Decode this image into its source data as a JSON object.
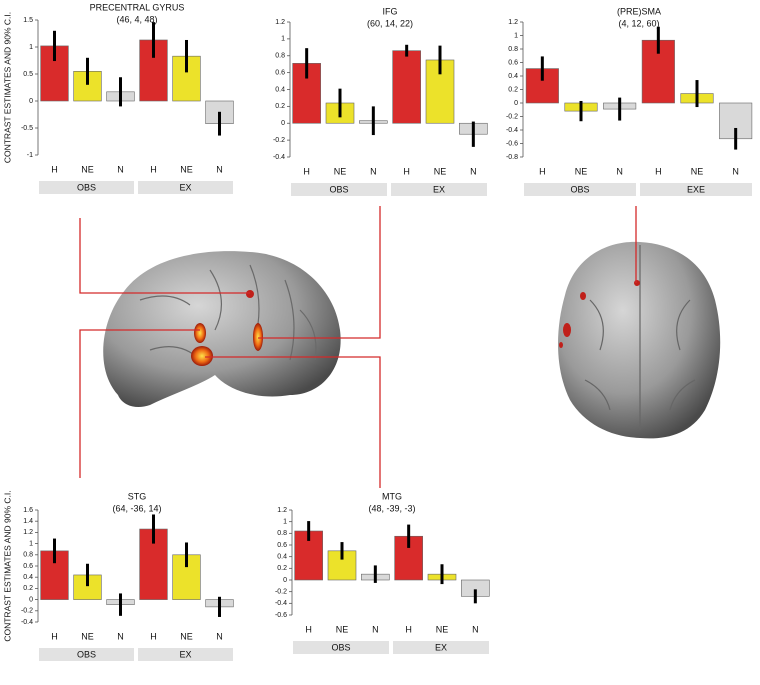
{
  "chart_data": [
    {
      "type": "bar",
      "title": "PRECENTRAL GYRUS",
      "subtitle": "(46, 4, 48)",
      "ylabel": "CONTRAST ESTIMATES AND 90% C.I.",
      "categories": [
        "H",
        "NE",
        "N",
        "H",
        "NE",
        "N"
      ],
      "groups": [
        "OBS",
        "EX"
      ],
      "values": [
        1.02,
        0.55,
        0.17,
        1.13,
        0.83,
        -0.42
      ],
      "errors": [
        0.28,
        0.25,
        0.27,
        0.33,
        0.3,
        0.22
      ],
      "colors": [
        "#d92b2b",
        "#ece22a",
        "#d9d9d9",
        "#d92b2b",
        "#ece22a",
        "#d9d9d9"
      ],
      "ylim": [
        -1,
        1.5
      ],
      "yticks": [
        -1,
        -0.5,
        0,
        0.5,
        1,
        1.5
      ]
    },
    {
      "type": "bar",
      "title": "IFG",
      "subtitle": "(60, 14, 22)",
      "categories": [
        "H",
        "NE",
        "N",
        "H",
        "NE",
        "N"
      ],
      "groups": [
        "OBS",
        "EX"
      ],
      "values": [
        0.71,
        0.24,
        0.03,
        0.86,
        0.75,
        -0.13
      ],
      "errors": [
        0.18,
        0.17,
        0.17,
        0.07,
        0.17,
        0.15
      ],
      "colors": [
        "#d92b2b",
        "#ece22a",
        "#d9d9d9",
        "#d92b2b",
        "#ece22a",
        "#d9d9d9"
      ],
      "ylim": [
        -0.4,
        1.2
      ],
      "yticks": [
        -0.4,
        -0.2,
        0,
        0.2,
        0.4,
        0.6,
        0.8,
        1,
        1.2
      ]
    },
    {
      "type": "bar",
      "title": "(PRE)SMA",
      "subtitle": "(4, 12, 60)",
      "categories": [
        "H",
        "NE",
        "N",
        "H",
        "NE",
        "N"
      ],
      "groups": [
        "OBS",
        "EXE"
      ],
      "values": [
        0.51,
        -0.12,
        -0.09,
        0.93,
        0.14,
        -0.53
      ],
      "errors": [
        0.18,
        0.15,
        0.17,
        0.2,
        0.2,
        0.16
      ],
      "colors": [
        "#d92b2b",
        "#ece22a",
        "#d9d9d9",
        "#d92b2b",
        "#ece22a",
        "#d9d9d9"
      ],
      "ylim": [
        -0.8,
        1.2
      ],
      "yticks": [
        -0.8,
        -0.6,
        -0.4,
        -0.2,
        0,
        0.2,
        0.4,
        0.6,
        0.8,
        1,
        1.2
      ]
    },
    {
      "type": "bar",
      "title": "STG",
      "subtitle": "(64, -36, 14)",
      "ylabel": "CONTRAST ESTIMATES AND 90% C.I.",
      "categories": [
        "H",
        "NE",
        "N",
        "H",
        "NE",
        "N"
      ],
      "groups": [
        "OBS",
        "EX"
      ],
      "values": [
        0.87,
        0.44,
        -0.09,
        1.26,
        0.8,
        -0.13
      ],
      "errors": [
        0.22,
        0.2,
        0.2,
        0.26,
        0.22,
        0.18
      ],
      "colors": [
        "#d92b2b",
        "#ece22a",
        "#d9d9d9",
        "#d92b2b",
        "#ece22a",
        "#d9d9d9"
      ],
      "ylim": [
        -0.4,
        1.6
      ],
      "yticks": [
        -0.4,
        -0.2,
        0,
        0.2,
        0.4,
        0.6,
        0.8,
        1,
        1.2,
        1.4,
        1.6
      ]
    },
    {
      "type": "bar",
      "title": "MTG",
      "subtitle": "(48, -39, -3)",
      "categories": [
        "H",
        "NE",
        "N",
        "H",
        "NE",
        "N"
      ],
      "groups": [
        "OBS",
        "EX"
      ],
      "values": [
        0.84,
        0.5,
        0.1,
        0.75,
        0.1,
        -0.28
      ],
      "errors": [
        0.17,
        0.15,
        0.15,
        0.2,
        0.17,
        0.12
      ],
      "colors": [
        "#d92b2b",
        "#ece22a",
        "#d9d9d9",
        "#d92b2b",
        "#ece22a",
        "#d9d9d9"
      ],
      "ylim": [
        -0.6,
        1.2
      ],
      "yticks": [
        -0.6,
        -0.4,
        -0.2,
        0,
        0.2,
        0.4,
        0.6,
        0.8,
        1,
        1.2
      ]
    }
  ]
}
